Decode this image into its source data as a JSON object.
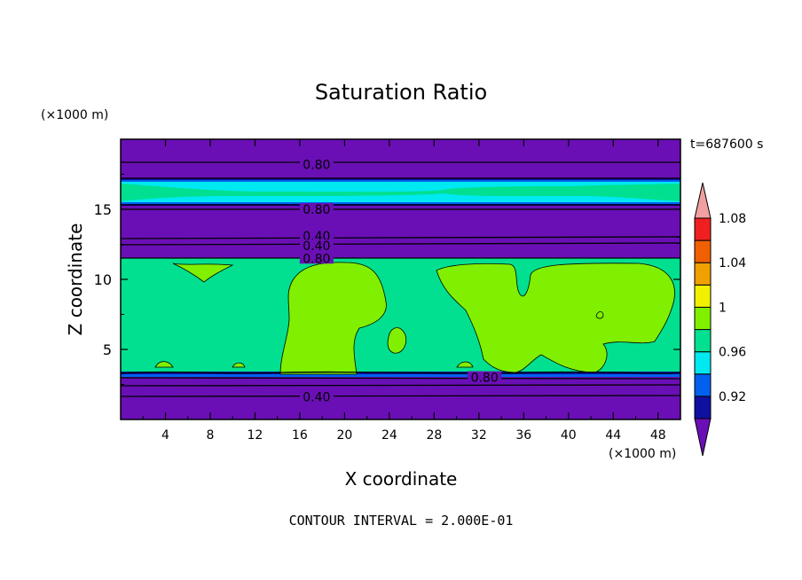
{
  "chart_data": {
    "type": "heatmap",
    "title": "Saturation Ratio",
    "xlabel": "X coordinate",
    "ylabel": "Z coordinate",
    "x_unit": "(×1000 m)",
    "y_unit": "(×1000 m)",
    "time_label": "t=687600 s",
    "contour_interval_label": "CONTOUR INTERVAL = 2.000E-01",
    "xlim": [
      0,
      50
    ],
    "ylim": [
      0,
      20
    ],
    "x_ticks": [
      4,
      8,
      12,
      16,
      20,
      24,
      28,
      32,
      36,
      40,
      44,
      48
    ],
    "y_ticks": [
      5,
      10,
      15
    ],
    "colorbar": {
      "levels": [
        0.92,
        0.96,
        1,
        1.04,
        1.08
      ],
      "level_labels": [
        "0.92",
        "0.96",
        "1",
        "1.04",
        "1.08"
      ],
      "colors": [
        "#6a0fb5",
        "#1010a0",
        "#0060f0",
        "#00e8f0",
        "#00e090",
        "#80f000",
        "#f0f000",
        "#f0a000",
        "#f06000",
        "#f02020",
        "#f0a0a0"
      ]
    },
    "contour_labels": [
      {
        "text": "0.80",
        "x": 17.5,
        "y": 18.2
      },
      {
        "text": "0.80",
        "x": 17.5,
        "y": 15.0
      },
      {
        "text": "0.40",
        "x": 17.5,
        "y": 13.1
      },
      {
        "text": "0.40",
        "x": 17.5,
        "y": 12.4
      },
      {
        "text": "0.80",
        "x": 17.5,
        "y": 11.5
      },
      {
        "text": "0.80",
        "x": 32.5,
        "y": 3.0
      },
      {
        "text": "0.40",
        "x": 17.5,
        "y": 1.6
      }
    ]
  }
}
